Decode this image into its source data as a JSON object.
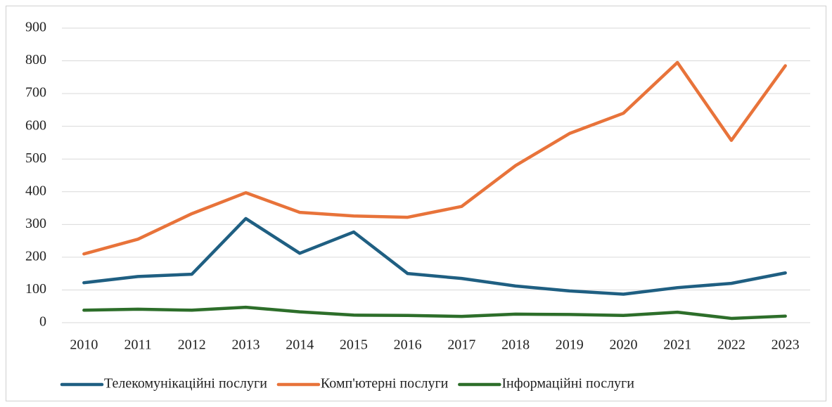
{
  "chart_data": {
    "type": "line",
    "categories": [
      "2010",
      "2011",
      "2012",
      "2013",
      "2014",
      "2015",
      "2016",
      "2017",
      "2018",
      "2019",
      "2020",
      "2021",
      "2022",
      "2023"
    ],
    "series": [
      {
        "name": "Телекомунікаційні послуги",
        "color": "#1f5f82",
        "values": [
          122,
          141,
          148,
          318,
          212,
          277,
          150,
          135,
          112,
          97,
          87,
          107,
          120,
          152
        ]
      },
      {
        "name": "Комп'ютерні послуги",
        "color": "#e8733a",
        "values": [
          210,
          255,
          333,
          397,
          337,
          326,
          322,
          355,
          480,
          578,
          640,
          795,
          557,
          785
        ]
      },
      {
        "name": "Інформаційні послуги",
        "color": "#2d6e2a",
        "values": [
          38,
          41,
          38,
          47,
          33,
          23,
          22,
          19,
          26,
          25,
          22,
          32,
          13,
          20
        ]
      }
    ],
    "ylim": [
      0,
      900
    ],
    "yticks": [
      0,
      100,
      200,
      300,
      400,
      500,
      600,
      700,
      800,
      900
    ],
    "grid": true,
    "legend": "bottom"
  }
}
